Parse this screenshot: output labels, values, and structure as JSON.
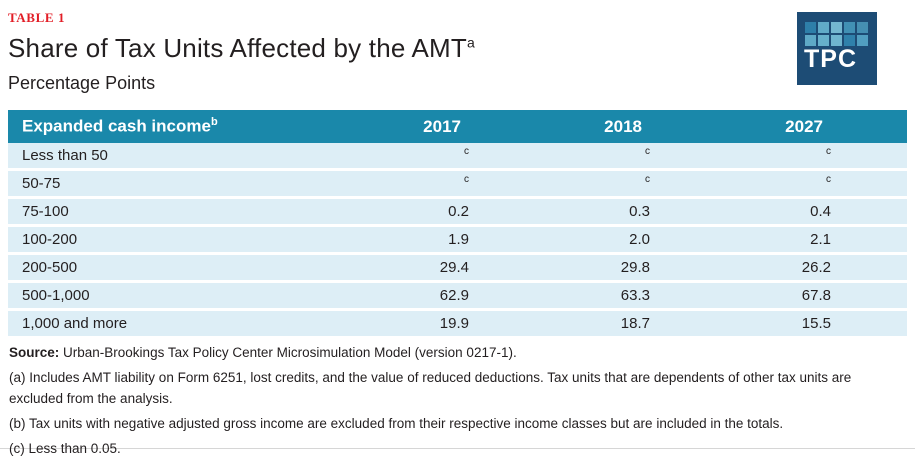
{
  "page": {
    "tag": "TABLE 1",
    "title": "Share of Tax Units Affected by the AMT",
    "title_sup": "a",
    "subtitle": "Percentage Points"
  },
  "logo": {
    "text": "TPC",
    "bg_color": "#1d4c75",
    "square_colors": [
      "#2e7fa9",
      "#61abc8",
      "#74b7d0",
      "#4190b4",
      "#458fb2",
      "#5ea9c6",
      "#66b0cb",
      "#6fb5cf",
      "#2f81ab",
      "#519ec0"
    ]
  },
  "table": {
    "header_label": "Expanded cash income",
    "header_label_sup": "b",
    "years": [
      "2017",
      "2018",
      "2027"
    ],
    "rows": [
      {
        "label": "Less than 50",
        "values": [
          "c",
          "c",
          "c"
        ]
      },
      {
        "label": "50-75",
        "values": [
          "c",
          "c",
          "c"
        ]
      },
      {
        "label": "75-100",
        "values": [
          "0.2",
          "0.3",
          "0.4"
        ]
      },
      {
        "label": "100-200",
        "values": [
          "1.9",
          "2.0",
          "2.1"
        ]
      },
      {
        "label": "200-500",
        "values": [
          "29.4",
          "29.8",
          "26.2"
        ]
      },
      {
        "label": "500-1,000",
        "values": [
          "62.9",
          "63.3",
          "67.8"
        ]
      },
      {
        "label": "1,000 and more",
        "values": [
          "19.9",
          "18.7",
          "15.5"
        ]
      }
    ],
    "colors": {
      "header_bg": "#1a88aa",
      "header_text": "#ffffff",
      "row_bg": "#ddeef6",
      "tag_red": "#e21d26"
    }
  },
  "notes": {
    "source_label": "Source:",
    "source_text": "Urban-Brookings Tax Policy Center Microsimulation Model (version 0217-1).",
    "note_a": "(a) Includes AMT liability on Form 6251, lost credits, and the value of reduced deductions. Tax units that are dependents of other tax units are excluded from the analysis.",
    "note_b": "(b) Tax units with negative adjusted gross income are excluded from their respective income classes but are included in the totals.",
    "note_c": "(c) Less than 0.05."
  }
}
